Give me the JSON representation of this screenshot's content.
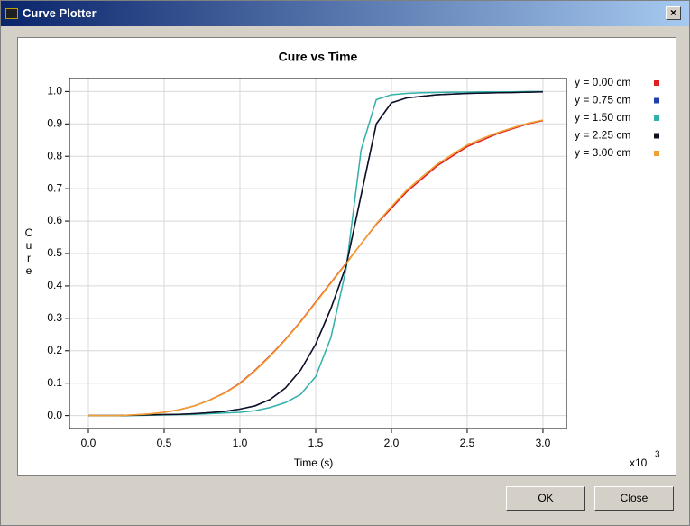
{
  "window": {
    "title": "Curve Plotter",
    "buttons": [
      "OK",
      "Close"
    ]
  },
  "chart_data": {
    "type": "line",
    "title": "Cure vs Time",
    "xlabel": "Time (s)",
    "ylabel": "Cure",
    "x_multiplier": "x10",
    "x_exponent": "3",
    "x": [
      0,
      0.1,
      0.2,
      0.3,
      0.4,
      0.5,
      0.6,
      0.7,
      0.8,
      0.9,
      1.0,
      1.1,
      1.2,
      1.3,
      1.4,
      1.5,
      1.6,
      1.7,
      1.8,
      1.9,
      2.0,
      2.1,
      2.2,
      2.3,
      2.4,
      2.5,
      2.6,
      2.7,
      2.8,
      2.9,
      3.0
    ],
    "series": [
      {
        "name": "y = 0.00 cm",
        "color": "#e02020",
        "values": [
          0,
          0,
          0,
          0.002,
          0.005,
          0.01,
          0.018,
          0.03,
          0.048,
          0.07,
          0.1,
          0.14,
          0.185,
          0.235,
          0.29,
          0.35,
          0.41,
          0.47,
          0.53,
          0.59,
          0.64,
          0.69,
          0.73,
          0.77,
          0.8,
          0.83,
          0.85,
          0.87,
          0.885,
          0.9,
          0.91
        ]
      },
      {
        "name": "y = 0.75 cm",
        "color": "#2040b0",
        "values": [
          0,
          0,
          0,
          0.001,
          0.002,
          0.003,
          0.004,
          0.006,
          0.009,
          0.013,
          0.02,
          0.03,
          0.05,
          0.085,
          0.14,
          0.22,
          0.33,
          0.46,
          0.68,
          0.9,
          0.965,
          0.98,
          0.985,
          0.99,
          0.992,
          0.994,
          0.995,
          0.996,
          0.997,
          0.998,
          0.999
        ]
      },
      {
        "name": "y = 1.50 cm",
        "color": "#30b0a8",
        "values": [
          0,
          0,
          0,
          0,
          0.001,
          0.002,
          0.003,
          0.004,
          0.006,
          0.008,
          0.01,
          0.015,
          0.025,
          0.04,
          0.065,
          0.12,
          0.24,
          0.45,
          0.82,
          0.975,
          0.99,
          0.994,
          0.996,
          0.997,
          0.998,
          0.998,
          0.999,
          0.999,
          0.999,
          1.0,
          1.0
        ]
      },
      {
        "name": "y = 2.25 cm",
        "color": "#101020",
        "values": [
          0,
          0,
          0,
          0.001,
          0.002,
          0.003,
          0.004,
          0.006,
          0.009,
          0.013,
          0.02,
          0.03,
          0.05,
          0.085,
          0.14,
          0.22,
          0.33,
          0.46,
          0.68,
          0.9,
          0.965,
          0.98,
          0.985,
          0.99,
          0.992,
          0.994,
          0.995,
          0.996,
          0.997,
          0.998,
          0.999
        ]
      },
      {
        "name": "y = 3.00 cm",
        "color": "#f0a030",
        "values": [
          0,
          0,
          0,
          0.002,
          0.005,
          0.01,
          0.018,
          0.03,
          0.047,
          0.069,
          0.098,
          0.138,
          0.183,
          0.233,
          0.288,
          0.348,
          0.408,
          0.468,
          0.53,
          0.592,
          0.645,
          0.695,
          0.736,
          0.775,
          0.805,
          0.835,
          0.855,
          0.873,
          0.888,
          0.902,
          0.912
        ]
      }
    ],
    "xlim": [
      -0.125,
      3.155
    ],
    "ylim": [
      -0.04,
      1.04
    ],
    "xticks": [
      {
        "value": 0,
        "label": "0.0"
      },
      {
        "value": 0.5,
        "label": "0.5"
      },
      {
        "value": 1,
        "label": "1.0"
      },
      {
        "value": 1.5,
        "label": "1.5"
      },
      {
        "value": 2,
        "label": "2.0"
      },
      {
        "value": 2.5,
        "label": "2.5"
      },
      {
        "value": 3,
        "label": "3.0"
      }
    ],
    "yticks": [
      {
        "value": 0,
        "label": "0.0"
      },
      {
        "value": 0.1,
        "label": "0.1"
      },
      {
        "value": 0.2,
        "label": "0.2"
      },
      {
        "value": 0.3,
        "label": "0.3"
      },
      {
        "value": 0.4,
        "label": "0.4"
      },
      {
        "value": 0.5,
        "label": "0.5"
      },
      {
        "value": 0.6,
        "label": "0.6"
      },
      {
        "value": 0.7,
        "label": "0.7"
      },
      {
        "value": 0.8,
        "label": "0.8"
      },
      {
        "value": 0.9,
        "label": "0.9"
      },
      {
        "value": 1,
        "label": "1.0"
      }
    ],
    "grid": true
  }
}
